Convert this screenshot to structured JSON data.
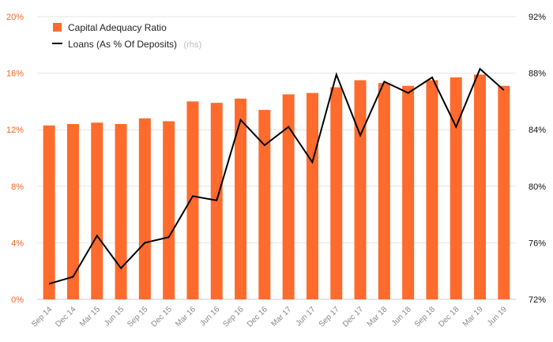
{
  "chart_data": {
    "type": "bar",
    "categories": [
      "Sep 14",
      "Dec 14",
      "Mar 15",
      "Jun 15",
      "Sep 15",
      "Dec 15",
      "Mar 16",
      "Jun 16",
      "Sep 16",
      "Dec 16",
      "Mar 17",
      "Jun 17",
      "Sep 17",
      "Dec 17",
      "Mar 18",
      "Jun 18",
      "Sep 18",
      "Dec 18",
      "Mar 19",
      "Jun 19"
    ],
    "series": [
      {
        "name": "Capital Adequacy Ratio",
        "kind": "bar",
        "axis": "left",
        "color": "#fe6b2c",
        "values": [
          12.3,
          12.4,
          12.5,
          12.4,
          12.8,
          12.6,
          14.0,
          13.9,
          14.2,
          13.4,
          14.5,
          14.6,
          15.0,
          15.5,
          15.3,
          15.1,
          15.5,
          15.7,
          15.9,
          15.1
        ]
      },
      {
        "name": "Loans (As % Of Deposits)",
        "name_suffix": "(rhs)",
        "kind": "line",
        "axis": "right",
        "color": "#000000",
        "values": [
          73.1,
          73.6,
          76.5,
          74.2,
          76.0,
          76.4,
          79.3,
          79.0,
          84.7,
          82.9,
          84.2,
          81.7,
          87.9,
          83.6,
          87.4,
          86.6,
          87.7,
          84.2,
          88.3,
          86.8
        ]
      }
    ],
    "left_axis": {
      "ylim": [
        0,
        20
      ],
      "ticks": [
        "0%",
        "4%",
        "8%",
        "12%",
        "16%",
        "20%"
      ],
      "color": "#f26522"
    },
    "right_axis": {
      "ylim": [
        72,
        92
      ],
      "ticks": [
        "72%",
        "76%",
        "80%",
        "84%",
        "88%",
        "92%"
      ],
      "color": "#111111"
    },
    "grid": true,
    "legend_position": "top-left"
  }
}
